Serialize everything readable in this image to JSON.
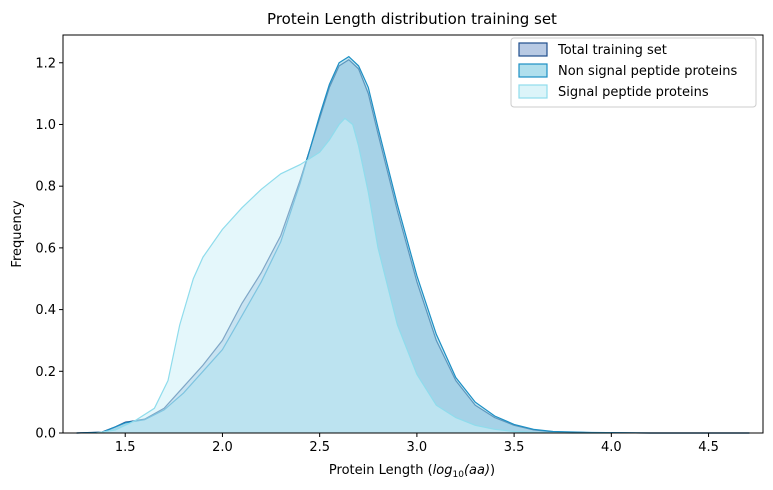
{
  "chart_data": {
    "type": "area",
    "title": "Protein Length distribution training set",
    "xlabel_prefix": "Protein Length (",
    "xlabel_math": "log",
    "xlabel_sub": "10",
    "xlabel_math2": "(aa)",
    "xlabel_suffix": ")",
    "ylabel": "Frequency",
    "xlim": [
      1.18,
      4.78
    ],
    "ylim": [
      0,
      1.29
    ],
    "xticks": [
      1.5,
      2.0,
      2.5,
      3.0,
      3.5,
      4.0,
      4.5
    ],
    "xtick_labels": [
      "1.5",
      "2.0",
      "2.5",
      "3.0",
      "3.5",
      "4.0",
      "4.5"
    ],
    "yticks": [
      0.0,
      0.2,
      0.4,
      0.6,
      0.8,
      1.0,
      1.2
    ],
    "ytick_labels": [
      "0.0",
      "0.2",
      "0.4",
      "0.6",
      "0.8",
      "1.0",
      "1.2"
    ],
    "grid": false,
    "legend_position": "upper right",
    "series": [
      {
        "name": "Total training set",
        "line_color": "#1f4e8c",
        "fill_color": "#9ab4d8",
        "fill_opacity": 0.6,
        "points": [
          [
            1.25,
            0
          ],
          [
            1.38,
            0.003
          ],
          [
            1.45,
            0.02
          ],
          [
            1.5,
            0.035
          ],
          [
            1.55,
            0.04
          ],
          [
            1.6,
            0.045
          ],
          [
            1.7,
            0.08
          ],
          [
            1.8,
            0.15
          ],
          [
            1.9,
            0.22
          ],
          [
            2.0,
            0.3
          ],
          [
            2.1,
            0.42
          ],
          [
            2.2,
            0.52
          ],
          [
            2.3,
            0.64
          ],
          [
            2.4,
            0.82
          ],
          [
            2.5,
            1.02
          ],
          [
            2.55,
            1.12
          ],
          [
            2.6,
            1.19
          ],
          [
            2.65,
            1.21
          ],
          [
            2.7,
            1.18
          ],
          [
            2.75,
            1.1
          ],
          [
            2.8,
            0.97
          ],
          [
            2.9,
            0.72
          ],
          [
            3.0,
            0.49
          ],
          [
            3.1,
            0.3
          ],
          [
            3.2,
            0.17
          ],
          [
            3.3,
            0.09
          ],
          [
            3.4,
            0.05
          ],
          [
            3.5,
            0.025
          ],
          [
            3.6,
            0.01
          ],
          [
            3.7,
            0.004
          ],
          [
            3.9,
            0.001
          ],
          [
            4.2,
            0
          ],
          [
            4.71,
            0
          ]
        ]
      },
      {
        "name": "Non signal peptide proteins",
        "line_color": "#1d8fc4",
        "fill_color": "#8fd2e6",
        "fill_opacity": 0.55,
        "points": [
          [
            1.25,
            0
          ],
          [
            1.38,
            0.002
          ],
          [
            1.45,
            0.02
          ],
          [
            1.5,
            0.033
          ],
          [
            1.55,
            0.038
          ],
          [
            1.6,
            0.043
          ],
          [
            1.7,
            0.075
          ],
          [
            1.8,
            0.13
          ],
          [
            1.9,
            0.2
          ],
          [
            2.0,
            0.27
          ],
          [
            2.1,
            0.38
          ],
          [
            2.2,
            0.49
          ],
          [
            2.3,
            0.62
          ],
          [
            2.4,
            0.81
          ],
          [
            2.5,
            1.03
          ],
          [
            2.55,
            1.13
          ],
          [
            2.6,
            1.2
          ],
          [
            2.65,
            1.22
          ],
          [
            2.7,
            1.19
          ],
          [
            2.75,
            1.12
          ],
          [
            2.8,
            0.99
          ],
          [
            2.9,
            0.74
          ],
          [
            3.0,
            0.51
          ],
          [
            3.1,
            0.32
          ],
          [
            3.2,
            0.18
          ],
          [
            3.3,
            0.1
          ],
          [
            3.4,
            0.055
          ],
          [
            3.5,
            0.028
          ],
          [
            3.6,
            0.012
          ],
          [
            3.7,
            0.005
          ],
          [
            3.9,
            0.0015
          ],
          [
            4.2,
            0
          ],
          [
            4.71,
            0
          ]
        ]
      },
      {
        "name": "Signal peptide proteins",
        "line_color": "#8fdcec",
        "fill_color": "#cdf0f7",
        "fill_opacity": 0.55,
        "points": [
          [
            1.35,
            0
          ],
          [
            1.45,
            0.01
          ],
          [
            1.55,
            0.04
          ],
          [
            1.65,
            0.08
          ],
          [
            1.72,
            0.17
          ],
          [
            1.78,
            0.35
          ],
          [
            1.85,
            0.5
          ],
          [
            1.9,
            0.57
          ],
          [
            2.0,
            0.66
          ],
          [
            2.1,
            0.73
          ],
          [
            2.2,
            0.79
          ],
          [
            2.3,
            0.84
          ],
          [
            2.4,
            0.87
          ],
          [
            2.5,
            0.91
          ],
          [
            2.55,
            0.95
          ],
          [
            2.6,
            1.0
          ],
          [
            2.63,
            1.02
          ],
          [
            2.67,
            1.0
          ],
          [
            2.7,
            0.93
          ],
          [
            2.75,
            0.78
          ],
          [
            2.8,
            0.6
          ],
          [
            2.9,
            0.35
          ],
          [
            3.0,
            0.19
          ],
          [
            3.1,
            0.09
          ],
          [
            3.2,
            0.05
          ],
          [
            3.3,
            0.025
          ],
          [
            3.4,
            0.012
          ],
          [
            3.5,
            0.005
          ],
          [
            3.6,
            0.002
          ],
          [
            3.8,
            0
          ],
          [
            4.0,
            0
          ]
        ]
      }
    ]
  }
}
